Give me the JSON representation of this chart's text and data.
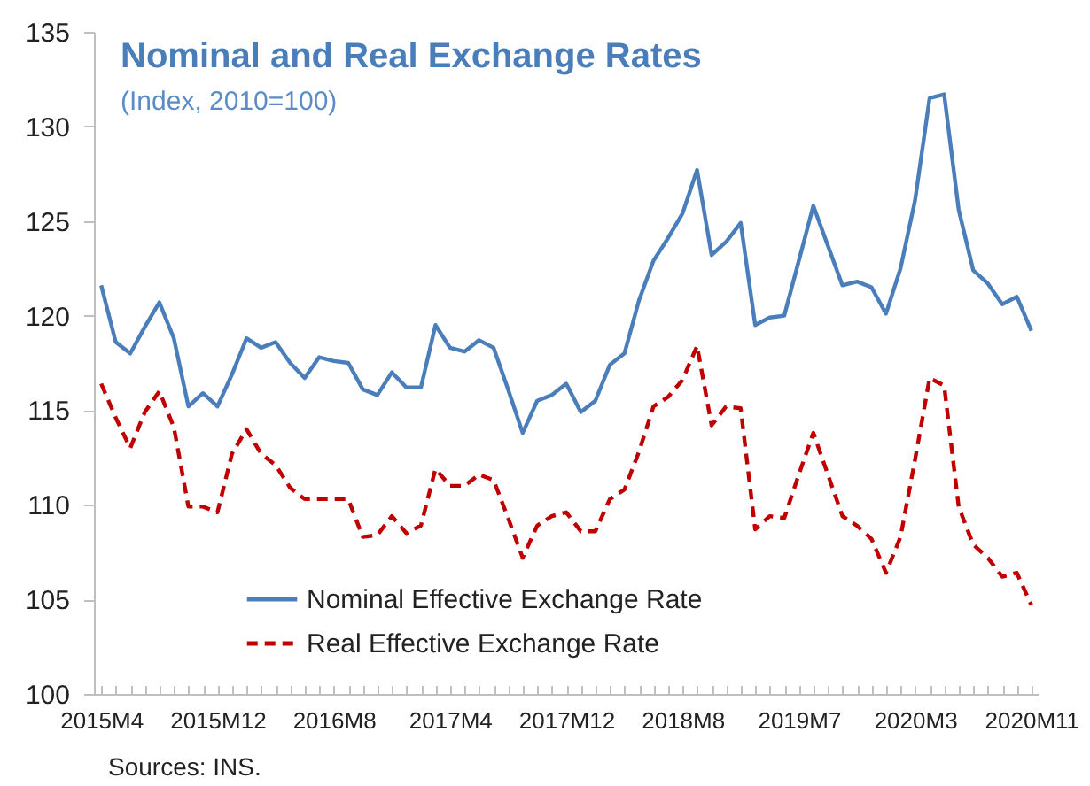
{
  "chart_data": {
    "type": "line",
    "title": "Nominal and Real Exchange Rates",
    "subtitle": "(Index, 2010=100)",
    "categories": [
      "2015M4",
      null,
      null,
      null,
      null,
      null,
      null,
      null,
      "2015M12",
      null,
      null,
      null,
      null,
      null,
      null,
      null,
      "2016M8",
      null,
      null,
      null,
      null,
      null,
      null,
      null,
      "2017M4",
      null,
      null,
      null,
      null,
      null,
      null,
      null,
      "2017M12",
      null,
      null,
      null,
      null,
      null,
      null,
      null,
      "2018M8",
      null,
      null,
      null,
      null,
      null,
      null,
      null,
      "2019M7",
      null,
      null,
      null,
      null,
      null,
      null,
      null,
      "2020M3",
      null,
      null,
      null,
      null,
      null,
      null,
      null,
      "2020M11"
    ],
    "series": [
      {
        "name": "Nominal Effective Exchange Rate",
        "color": "#4a7ebb",
        "line_style": "solid",
        "values": [
          121.6,
          118.6,
          118.0,
          119.4,
          120.7,
          118.8,
          115.2,
          115.9,
          115.2,
          116.9,
          118.8,
          118.3,
          118.6,
          117.5,
          116.7,
          117.8,
          117.6,
          117.5,
          116.1,
          115.8,
          117.0,
          116.2,
          116.2,
          119.5,
          118.3,
          118.1,
          118.7,
          118.3,
          116.1,
          113.8,
          115.5,
          115.8,
          116.4,
          114.9,
          115.5,
          117.4,
          118.0,
          120.8,
          122.9,
          124.1,
          125.4,
          127.7,
          123.2,
          123.9,
          124.9,
          119.5,
          119.9,
          120.0,
          122.9,
          125.8,
          123.7,
          121.6,
          121.8,
          121.5,
          120.1,
          122.5,
          126.1,
          131.5,
          131.7,
          125.6,
          122.4,
          121.7,
          120.6,
          121.0,
          119.2
        ]
      },
      {
        "name": "Real Effective Exchange Rate",
        "color": "#c00000",
        "line_style": "dashed",
        "values": [
          116.4,
          114.6,
          113.0,
          114.9,
          116.0,
          114.1,
          109.9,
          109.9,
          109.6,
          112.7,
          114.0,
          112.7,
          112.1,
          110.9,
          110.3,
          110.3,
          110.3,
          110.3,
          108.3,
          108.4,
          109.4,
          108.5,
          108.9,
          111.9,
          111.0,
          111.0,
          111.6,
          111.3,
          109.3,
          107.2,
          108.9,
          109.4,
          109.6,
          108.6,
          108.6,
          110.3,
          110.8,
          112.8,
          115.2,
          115.7,
          116.6,
          118.4,
          114.2,
          115.2,
          115.1,
          108.7,
          109.4,
          109.3,
          111.6,
          113.8,
          111.6,
          109.4,
          108.9,
          108.2,
          106.4,
          108.3,
          112.4,
          116.7,
          116.3,
          109.9,
          107.9,
          107.2,
          106.2,
          106.4,
          104.7
        ]
      }
    ],
    "ylim": [
      100,
      135
    ],
    "yticks": [
      100,
      105,
      110,
      115,
      120,
      125,
      130,
      135
    ],
    "grid": false,
    "legend": "bottom left",
    "marker": "none",
    "annotations": [
      "Sources: INS."
    ]
  }
}
